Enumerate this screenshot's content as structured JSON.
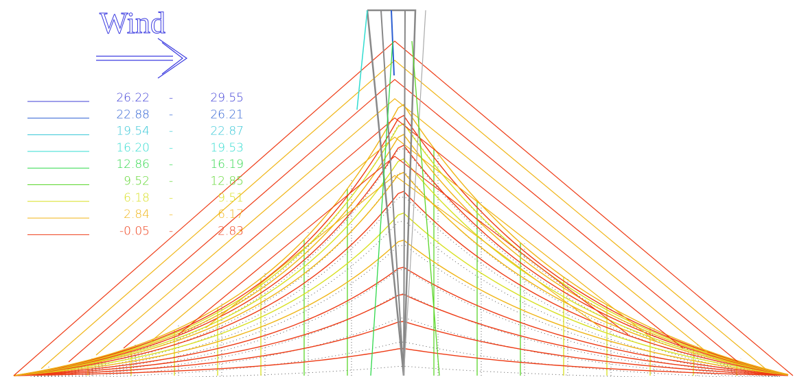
{
  "title": "Wind",
  "separator": "-",
  "legend": [
    {
      "from": "26.22",
      "to": "29.55",
      "color": "#3d3dd6"
    },
    {
      "from": "22.88",
      "to": "26.21",
      "color": "#2a5ed2"
    },
    {
      "from": "19.54",
      "to": "22.87",
      "color": "#33c6d6"
    },
    {
      "from": "16.20",
      "to": "19.53",
      "color": "#30dcd0"
    },
    {
      "from": "12.86",
      "to": "16.19",
      "color": "#2fd84a"
    },
    {
      "from": "9.52",
      "to": "12.85",
      "color": "#5ad62a"
    },
    {
      "from": "6.18",
      "to": "9.51",
      "color": "#d8e020"
    },
    {
      "from": "2.84",
      "to": "6.17",
      "color": "#f0b414"
    },
    {
      "from": "-0.05",
      "to": "2.83",
      "color": "#ee3a14"
    }
  ]
}
